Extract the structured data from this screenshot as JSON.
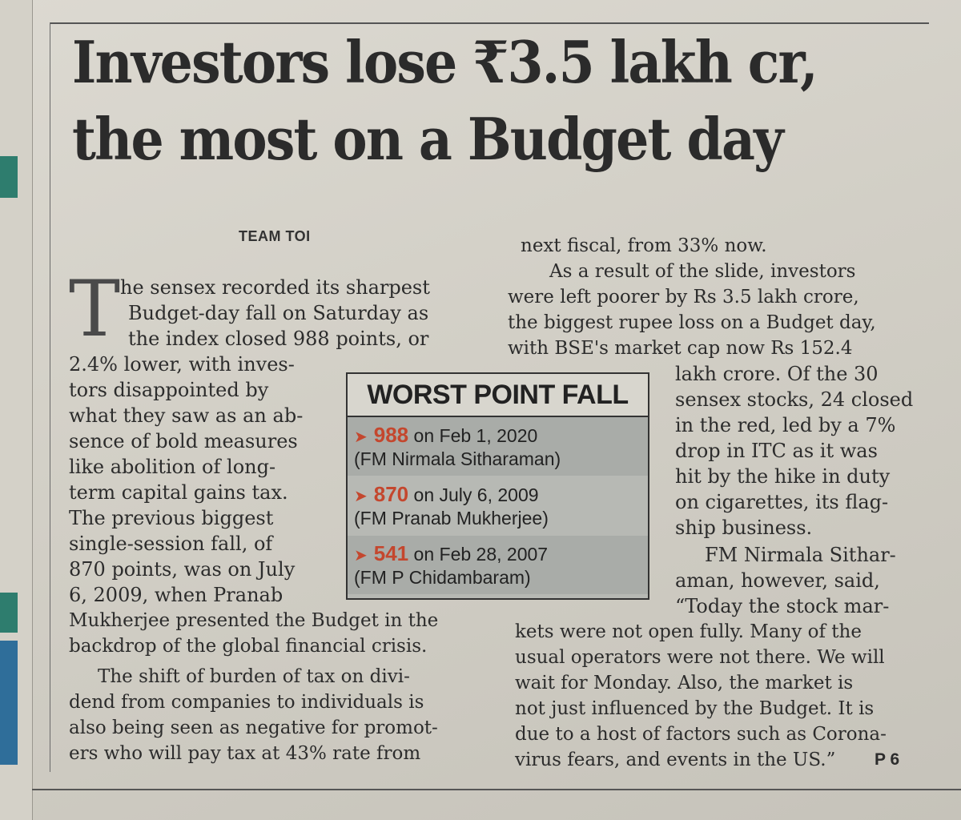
{
  "article": {
    "headline": [
      "Investors lose ₹3.5 lakh cr,",
      "the most on a Budget day"
    ],
    "byline": "TEAM TOI",
    "drop_cap": "T",
    "column_left": [
      "he sensex recorded its sharpest",
      "Budget-day fall on Saturday as",
      "the index closed 988 points, or",
      "2.4% lower, with inves-",
      "tors disappointed by",
      "what they saw as an ab-",
      "sence of bold measures",
      "like abolition of long-",
      "term capital gains tax.",
      "The previous biggest",
      "single-session fall, of",
      "870 points, was on July",
      "6, 2009, when Pranab",
      "Mukherjee presented the Budget in the",
      "backdrop of the global financial crisis.",
      "The shift of burden of tax on divi-",
      "dend from companies to individuals is",
      "also being seen as negative for promot-",
      "ers who will pay tax at 43% rate from"
    ],
    "column_right_top": [
      "next fiscal, from 33% now.",
      "As a result of the slide, investors",
      "were left poorer by Rs 3.5 lakh crore,",
      "the biggest rupee loss on a Budget day,",
      "with BSE's market cap now Rs 152.4"
    ],
    "column_right_side": [
      "lakh crore. Of the 30",
      "sensex stocks, 24 closed",
      "in the red, led by a 7%",
      "drop in ITC as it was",
      "hit by the hike in duty",
      "on cigarettes, its flag-",
      "ship business.",
      "FM Nirmala Sithar-",
      "aman, however, said,",
      "“Today the stock mar-"
    ],
    "column_right_bottom": [
      "kets were not open fully. Many of the",
      "usual operators were not there. We will",
      "wait for Monday. Also, the market is",
      "not just influenced by the Budget. It is",
      "due to a host of factors such as Corona-",
      "virus fears, and events in the US.”",
      "P 6"
    ]
  },
  "sidebar_box": {
    "title": "WORST POINT FALL",
    "items": [
      {
        "points": "988",
        "date": "on Feb 1, 2020",
        "fm": "(FM Nirmala Sitharaman)"
      },
      {
        "points": "870",
        "date": "on July 6, 2009",
        "fm": "(FM Pranab Mukherjee)"
      },
      {
        "points": "541",
        "date": "on Feb 28, 2007",
        "fm": "(FM P Chidambaram)"
      }
    ],
    "accent_color": "#c4472e"
  }
}
